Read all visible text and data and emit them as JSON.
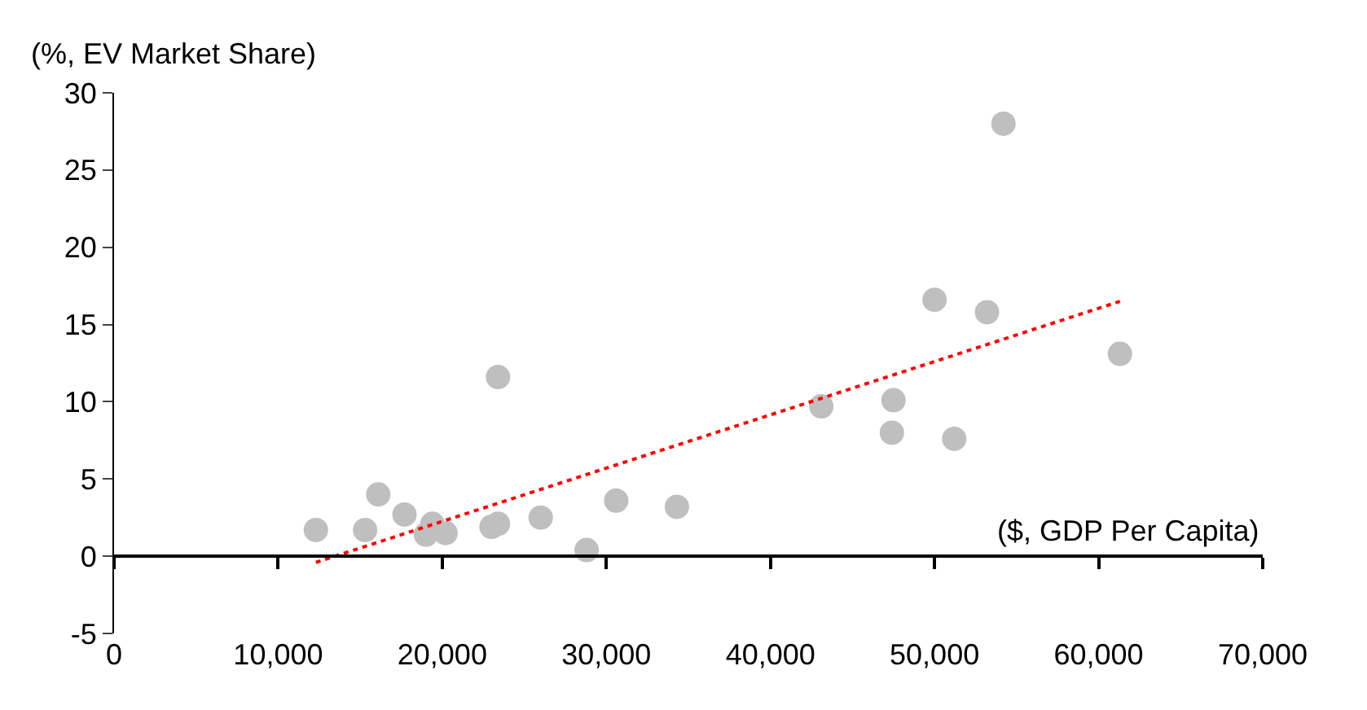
{
  "chart_data": {
    "type": "scatter",
    "ylabel": "(%, EV Market Share)",
    "xlabel": "($, GDP Per Capita)",
    "xlim": [
      0,
      70000
    ],
    "xticks": [
      {
        "value": 0,
        "label": "0"
      },
      {
        "value": 10000,
        "label": "10,000"
      },
      {
        "value": 20000,
        "label": "20,000"
      },
      {
        "value": 30000,
        "label": "30,000"
      },
      {
        "value": 40000,
        "label": "40,000"
      },
      {
        "value": 50000,
        "label": "50,000"
      },
      {
        "value": 60000,
        "label": "60,000"
      },
      {
        "value": 70000,
        "label": "70,000"
      }
    ],
    "ylim": [
      -5,
      30
    ],
    "yticks": [
      -5,
      0,
      5,
      10,
      15,
      20,
      25,
      30
    ],
    "legend": false,
    "marker": "circle",
    "series": [
      {
        "color": "#bfbfbf",
        "x": [
          12300,
          15300,
          16100,
          17700,
          19400,
          19000,
          20200,
          23000,
          23400,
          23400,
          26000,
          28800,
          30600,
          34300,
          43100,
          47500,
          47400,
          50000,
          51200,
          53200,
          54200,
          61300
        ],
        "values": [
          1.7,
          1.7,
          4.0,
          2.7,
          2.1,
          1.4,
          1.5,
          1.9,
          2.1,
          11.6,
          2.5,
          0.4,
          3.6,
          3.2,
          9.7,
          10.1,
          8.0,
          16.6,
          7.6,
          15.8,
          28.0,
          13.1
        ]
      },
      {
        "type": "line",
        "color": "#ff0000",
        "line_style": "dotted",
        "marker": "none",
        "x": [
          12300,
          61300
        ],
        "values": [
          -0.4,
          16.5
        ]
      }
    ]
  }
}
